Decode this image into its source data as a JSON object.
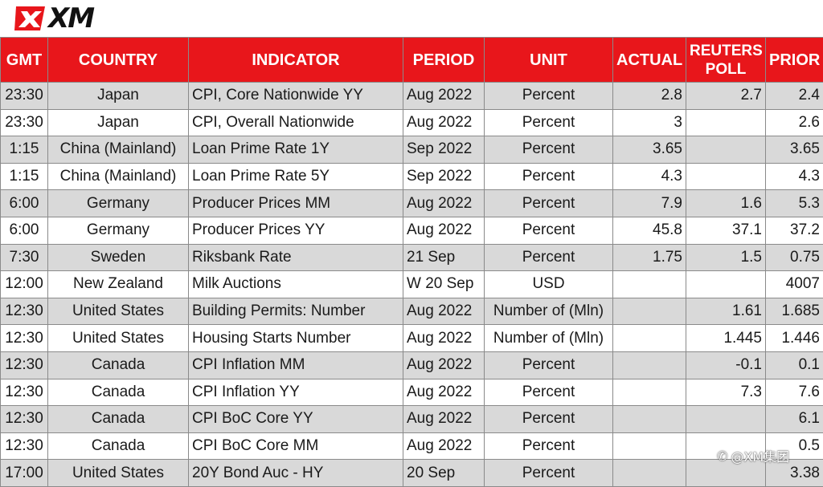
{
  "brand": {
    "logo_text": "XM",
    "accent": "#e8161b"
  },
  "table": {
    "headers": [
      "GMT",
      "COUNTRY",
      "INDICATOR",
      "PERIOD",
      "UNIT",
      "ACTUAL",
      "REUTERS POLL",
      "PRIOR"
    ],
    "rows": [
      [
        "23:30",
        "Japan",
        "CPI, Core Nationwide YY",
        "Aug 2022",
        "Percent",
        "2.8",
        "2.7",
        "2.4"
      ],
      [
        "23:30",
        "Japan",
        "CPI, Overall Nationwide",
        "Aug 2022",
        "Percent",
        "3",
        "",
        "2.6"
      ],
      [
        "1:15",
        "China (Mainland)",
        "Loan Prime Rate 1Y",
        "Sep 2022",
        "Percent",
        "3.65",
        "",
        "3.65"
      ],
      [
        "1:15",
        "China (Mainland)",
        "Loan Prime Rate 5Y",
        "Sep 2022",
        "Percent",
        "4.3",
        "",
        "4.3"
      ],
      [
        "6:00",
        "Germany",
        "Producer Prices MM",
        "Aug 2022",
        "Percent",
        "7.9",
        "1.6",
        "5.3"
      ],
      [
        "6:00",
        "Germany",
        "Producer Prices YY",
        "Aug 2022",
        "Percent",
        "45.8",
        "37.1",
        "37.2"
      ],
      [
        "7:30",
        "Sweden",
        "Riksbank Rate",
        "21 Sep",
        "Percent",
        "1.75",
        "1.5",
        "0.75"
      ],
      [
        "12:00",
        "New Zealand",
        "Milk Auctions",
        "W 20 Sep",
        "USD",
        "",
        "",
        "4007"
      ],
      [
        "12:30",
        "United States",
        "Building Permits: Number",
        "Aug 2022",
        "Number of (Mln)",
        "",
        "1.61",
        "1.685"
      ],
      [
        "12:30",
        "United States",
        "Housing Starts Number",
        "Aug 2022",
        "Number of (Mln)",
        "",
        "1.445",
        "1.446"
      ],
      [
        "12:30",
        "Canada",
        "CPI Inflation MM",
        "Aug 2022",
        "Percent",
        "",
        "-0.1",
        "0.1"
      ],
      [
        "12:30",
        "Canada",
        "CPI Inflation YY",
        "Aug 2022",
        "Percent",
        "",
        "7.3",
        "7.6"
      ],
      [
        "12:30",
        "Canada",
        "CPI BoC Core YY",
        "Aug 2022",
        "Percent",
        "",
        "",
        "6.1"
      ],
      [
        "12:30",
        "Canada",
        "CPI BoC Core MM",
        "Aug 2022",
        "Percent",
        "",
        "",
        "0.5"
      ],
      [
        "17:00",
        "United States",
        "20Y Bond Auc - HY",
        "20 Sep",
        "Percent",
        "",
        "",
        "3.38"
      ]
    ]
  },
  "watermark": {
    "text": "@XM集团"
  }
}
